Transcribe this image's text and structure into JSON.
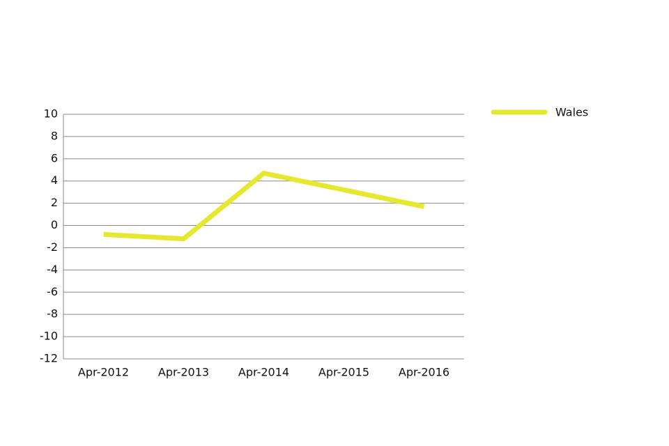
{
  "chart_data": {
    "type": "line",
    "categories": [
      "Apr-2012",
      "Apr-2013",
      "Apr-2014",
      "Apr-2015",
      "Apr-2016"
    ],
    "series": [
      {
        "name": "Wales",
        "color": "#e6e82f",
        "values": [
          -0.8,
          -1.2,
          4.7,
          3.2,
          1.7
        ]
      }
    ],
    "ylim": [
      -12,
      10
    ],
    "yticks": [
      -12,
      -10,
      -8,
      -6,
      -4,
      -2,
      0,
      2,
      4,
      6,
      8,
      10
    ],
    "grid": true,
    "legend": "right"
  }
}
